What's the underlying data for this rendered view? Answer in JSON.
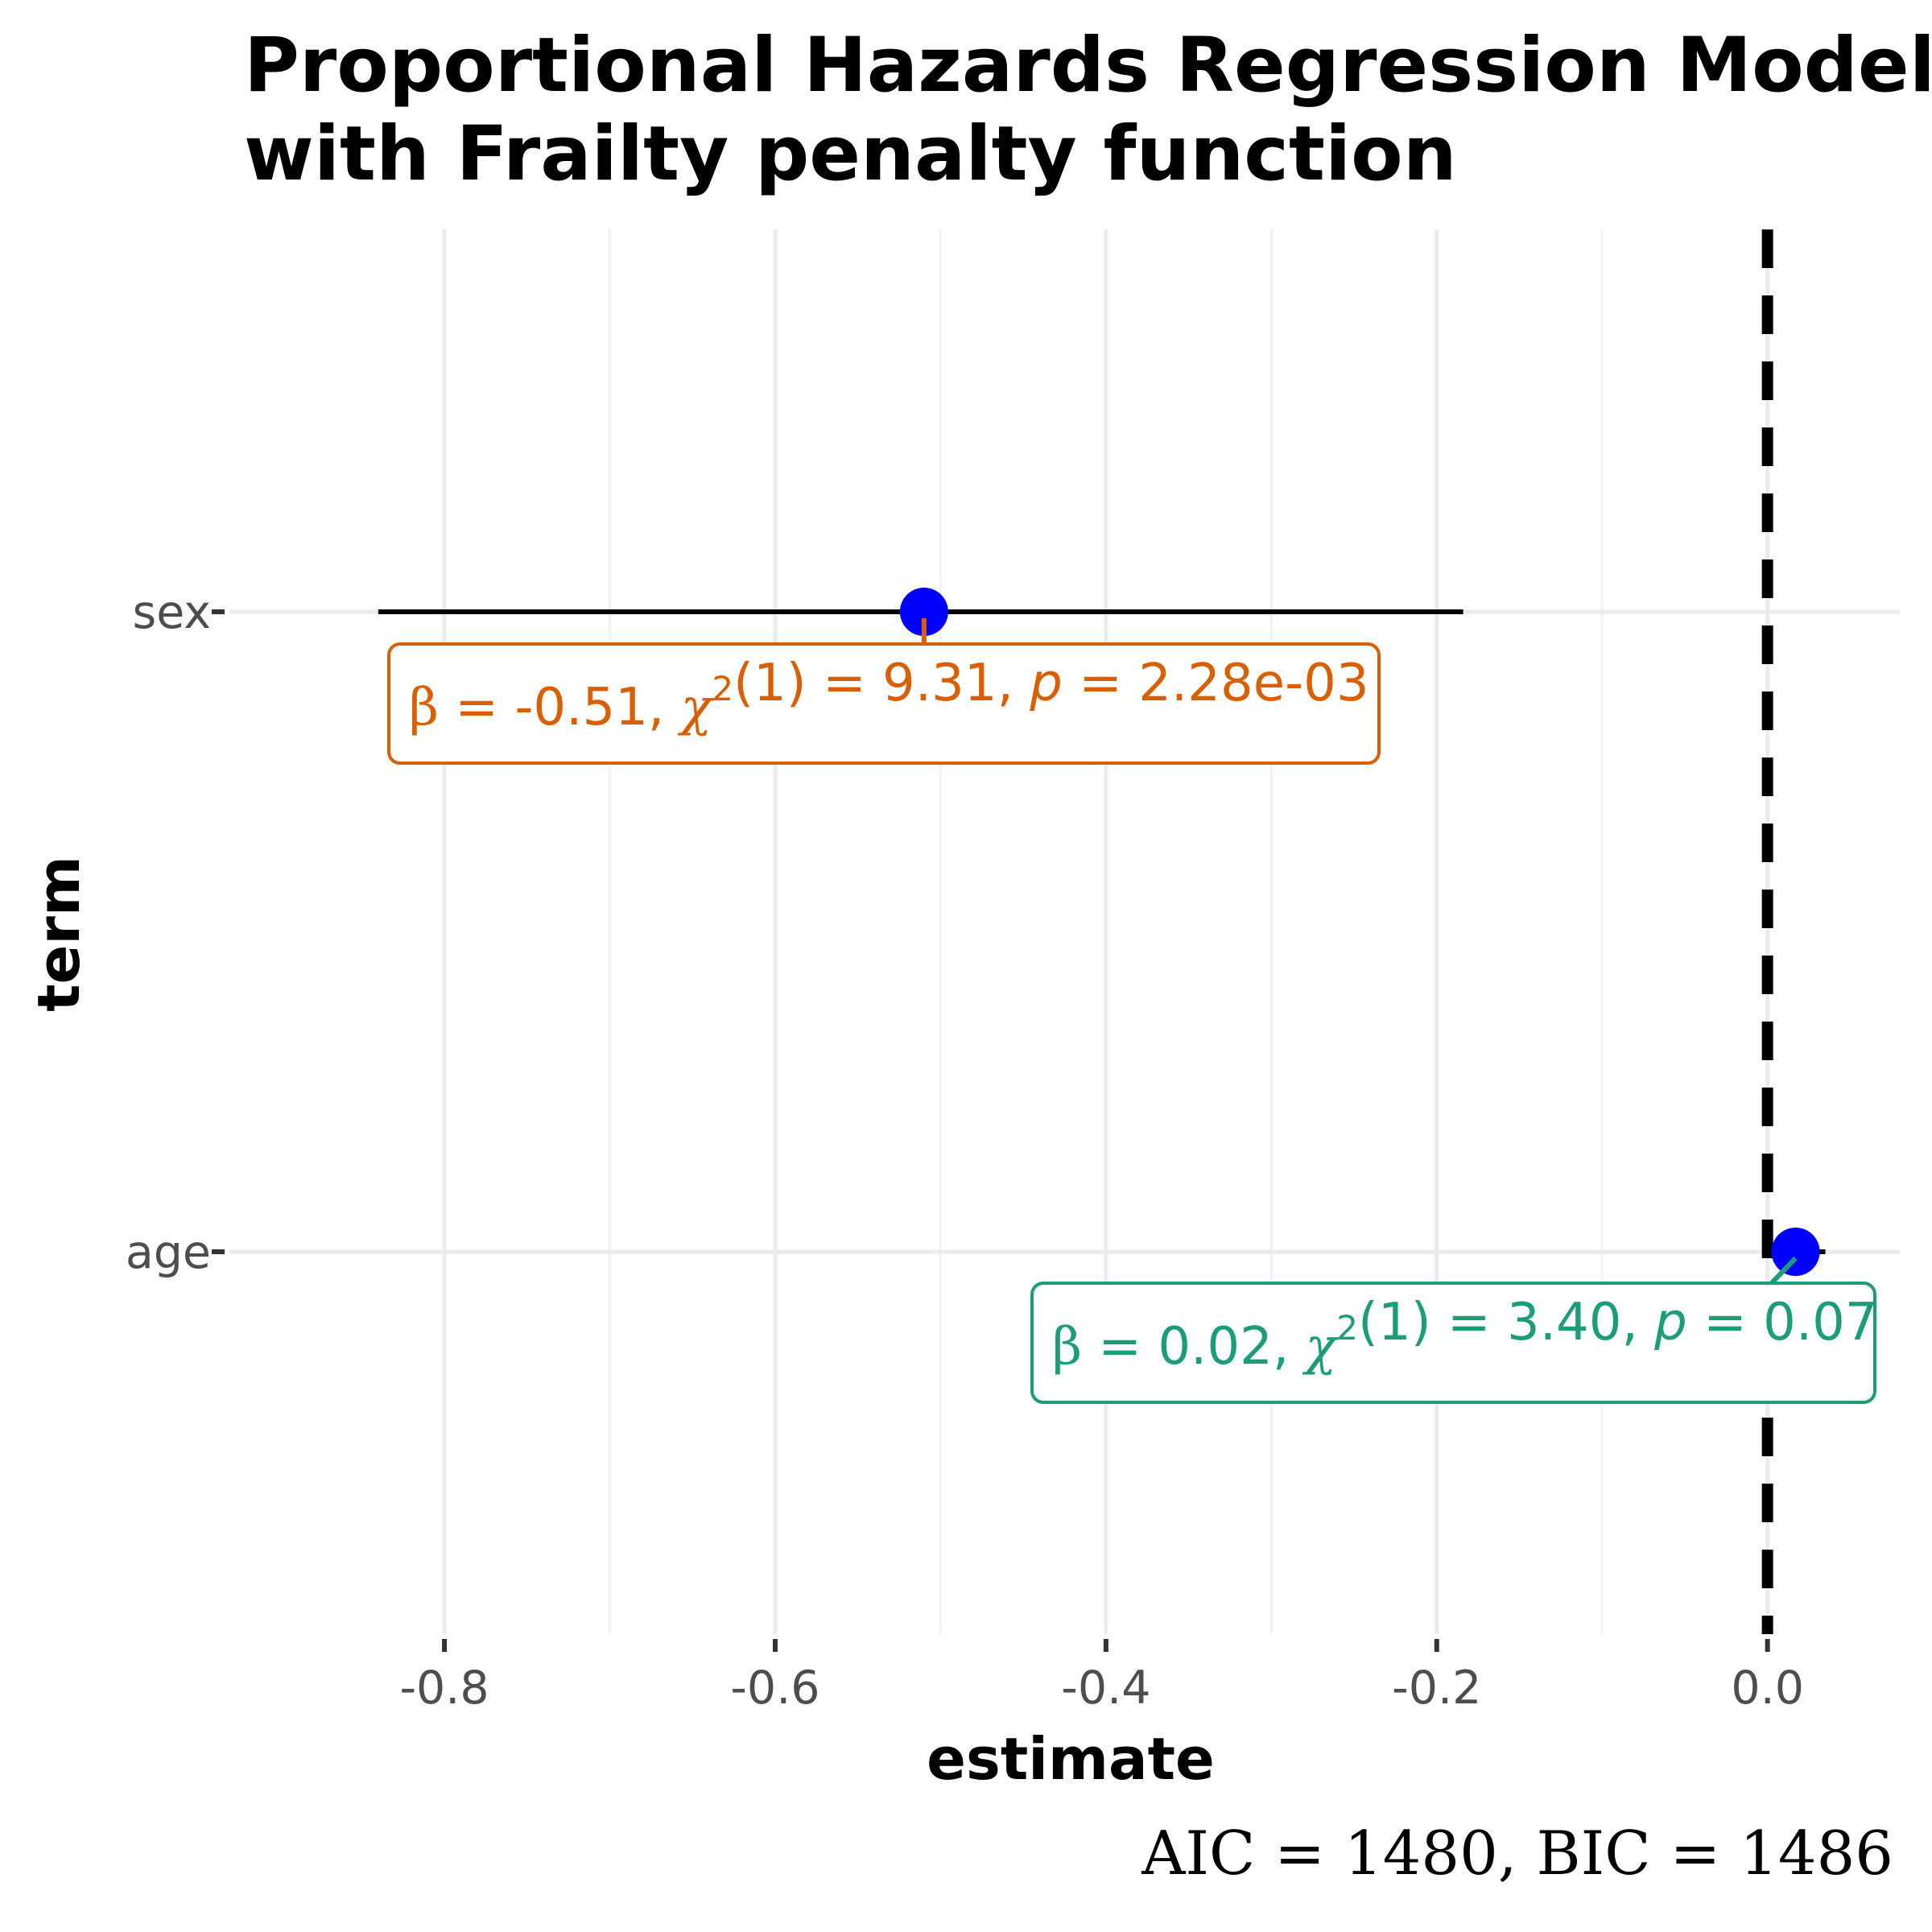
{
  "chart_data": {
    "type": "scatter",
    "title": "Proportional Hazards Regression Model with Frailty penalty function",
    "title_lines": [
      "Proportional Hazards Regression Model",
      "with Frailty penalty function"
    ],
    "xlabel": "estimate",
    "ylabel": "term",
    "xlim": [
      -0.93,
      0.08
    ],
    "x_ticks": [
      -0.8,
      -0.6,
      -0.4,
      -0.2,
      0.0
    ],
    "x_tick_labels": [
      "-0.8",
      "-0.6",
      "-0.4",
      "-0.2",
      "0.0"
    ],
    "x_minor_ticks": [
      -0.7,
      -0.5,
      -0.3,
      -0.1
    ],
    "y_categories": [
      "sex",
      "age"
    ],
    "grid": true,
    "reference_line": 0,
    "terms": [
      {
        "term": "sex",
        "estimate": -0.51,
        "conf_low": -0.84,
        "conf_high": -0.184,
        "label": {
          "beta": "-0.51",
          "df": "1",
          "chi2": "9.31",
          "p": "2.28e-03"
        }
      },
      {
        "term": "age",
        "estimate": 0.017,
        "conf_low": -0.002,
        "conf_high": 0.035,
        "label": {
          "beta": "0.02",
          "df": "1",
          "chi2": "3.40",
          "p": "0.07"
        }
      }
    ],
    "caption": {
      "aic": "1480",
      "bic": "1486"
    }
  },
  "colors": {
    "point": "#0000ff",
    "errorbar": "#000000",
    "grid_major": "#ebebeb",
    "grid_minor": "#f2f2f2",
    "reference_line": "#000000",
    "label_colors": [
      "#d95f02",
      "#1b9e77"
    ]
  }
}
